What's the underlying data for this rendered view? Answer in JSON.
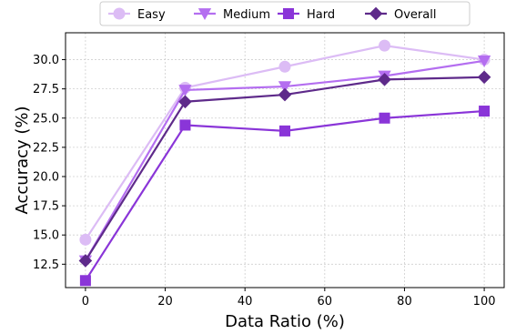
{
  "chart_data": {
    "type": "line",
    "title": "",
    "xlabel": "Data Ratio (%)",
    "ylabel": "Accuracy (%)",
    "x": [
      0,
      25,
      50,
      75,
      100
    ],
    "xlim": [
      -5,
      105
    ],
    "ylim": [
      10.5,
      32.3
    ],
    "xticks": [
      0,
      20,
      40,
      60,
      80,
      100
    ],
    "xtick_labels": [
      "0",
      "20",
      "40",
      "60",
      "80",
      "100"
    ],
    "yticks": [
      12.5,
      15.0,
      17.5,
      20.0,
      22.5,
      25.0,
      27.5,
      30.0
    ],
    "ytick_labels": [
      "12.5",
      "15.0",
      "17.5",
      "20.0",
      "22.5",
      "25.0",
      "27.5",
      "30.0"
    ],
    "grid": true,
    "legend_position": "top",
    "series": [
      {
        "name": "Easy",
        "values": [
          14.6,
          27.6,
          29.4,
          31.2,
          30.0
        ],
        "color": "#dcbcf5",
        "marker": "circle"
      },
      {
        "name": "Medium",
        "values": [
          12.8,
          27.4,
          27.7,
          28.6,
          29.9
        ],
        "color": "#b46ef0",
        "marker": "triangle-down"
      },
      {
        "name": "Hard",
        "values": [
          11.1,
          24.4,
          23.9,
          25.0,
          25.6
        ],
        "color": "#8a35d8",
        "marker": "square"
      },
      {
        "name": "Overall",
        "values": [
          12.8,
          26.4,
          27.0,
          28.3,
          28.5
        ],
        "color": "#5e2a8a",
        "marker": "diamond"
      }
    ]
  }
}
